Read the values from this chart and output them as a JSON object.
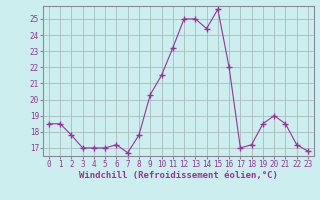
{
  "x": [
    0,
    1,
    2,
    3,
    4,
    5,
    6,
    7,
    8,
    9,
    10,
    11,
    12,
    13,
    14,
    15,
    16,
    17,
    18,
    19,
    20,
    21,
    22,
    23
  ],
  "y": [
    18.5,
    18.5,
    17.8,
    17.0,
    17.0,
    17.0,
    17.2,
    16.7,
    17.8,
    20.3,
    21.5,
    23.2,
    25.0,
    25.0,
    24.4,
    25.6,
    22.0,
    17.0,
    17.2,
    18.5,
    19.0,
    18.5,
    17.2,
    16.8
  ],
  "line_color": "#993399",
  "marker": "+",
  "marker_size": 4,
  "bg_color": "#cceeee",
  "grid_color": "#aabbbb",
  "xlabel": "Windchill (Refroidissement éolien,°C)",
  "ylim": [
    16.5,
    25.8
  ],
  "yticks": [
    17,
    18,
    19,
    20,
    21,
    22,
    23,
    24,
    25
  ],
  "xlim": [
    -0.5,
    23.5
  ],
  "xticks": [
    0,
    1,
    2,
    3,
    4,
    5,
    6,
    7,
    8,
    9,
    10,
    11,
    12,
    13,
    14,
    15,
    16,
    17,
    18,
    19,
    20,
    21,
    22,
    23
  ],
  "tick_fontsize": 5.5,
  "xlabel_fontsize": 6.5,
  "spine_color": "#888899"
}
